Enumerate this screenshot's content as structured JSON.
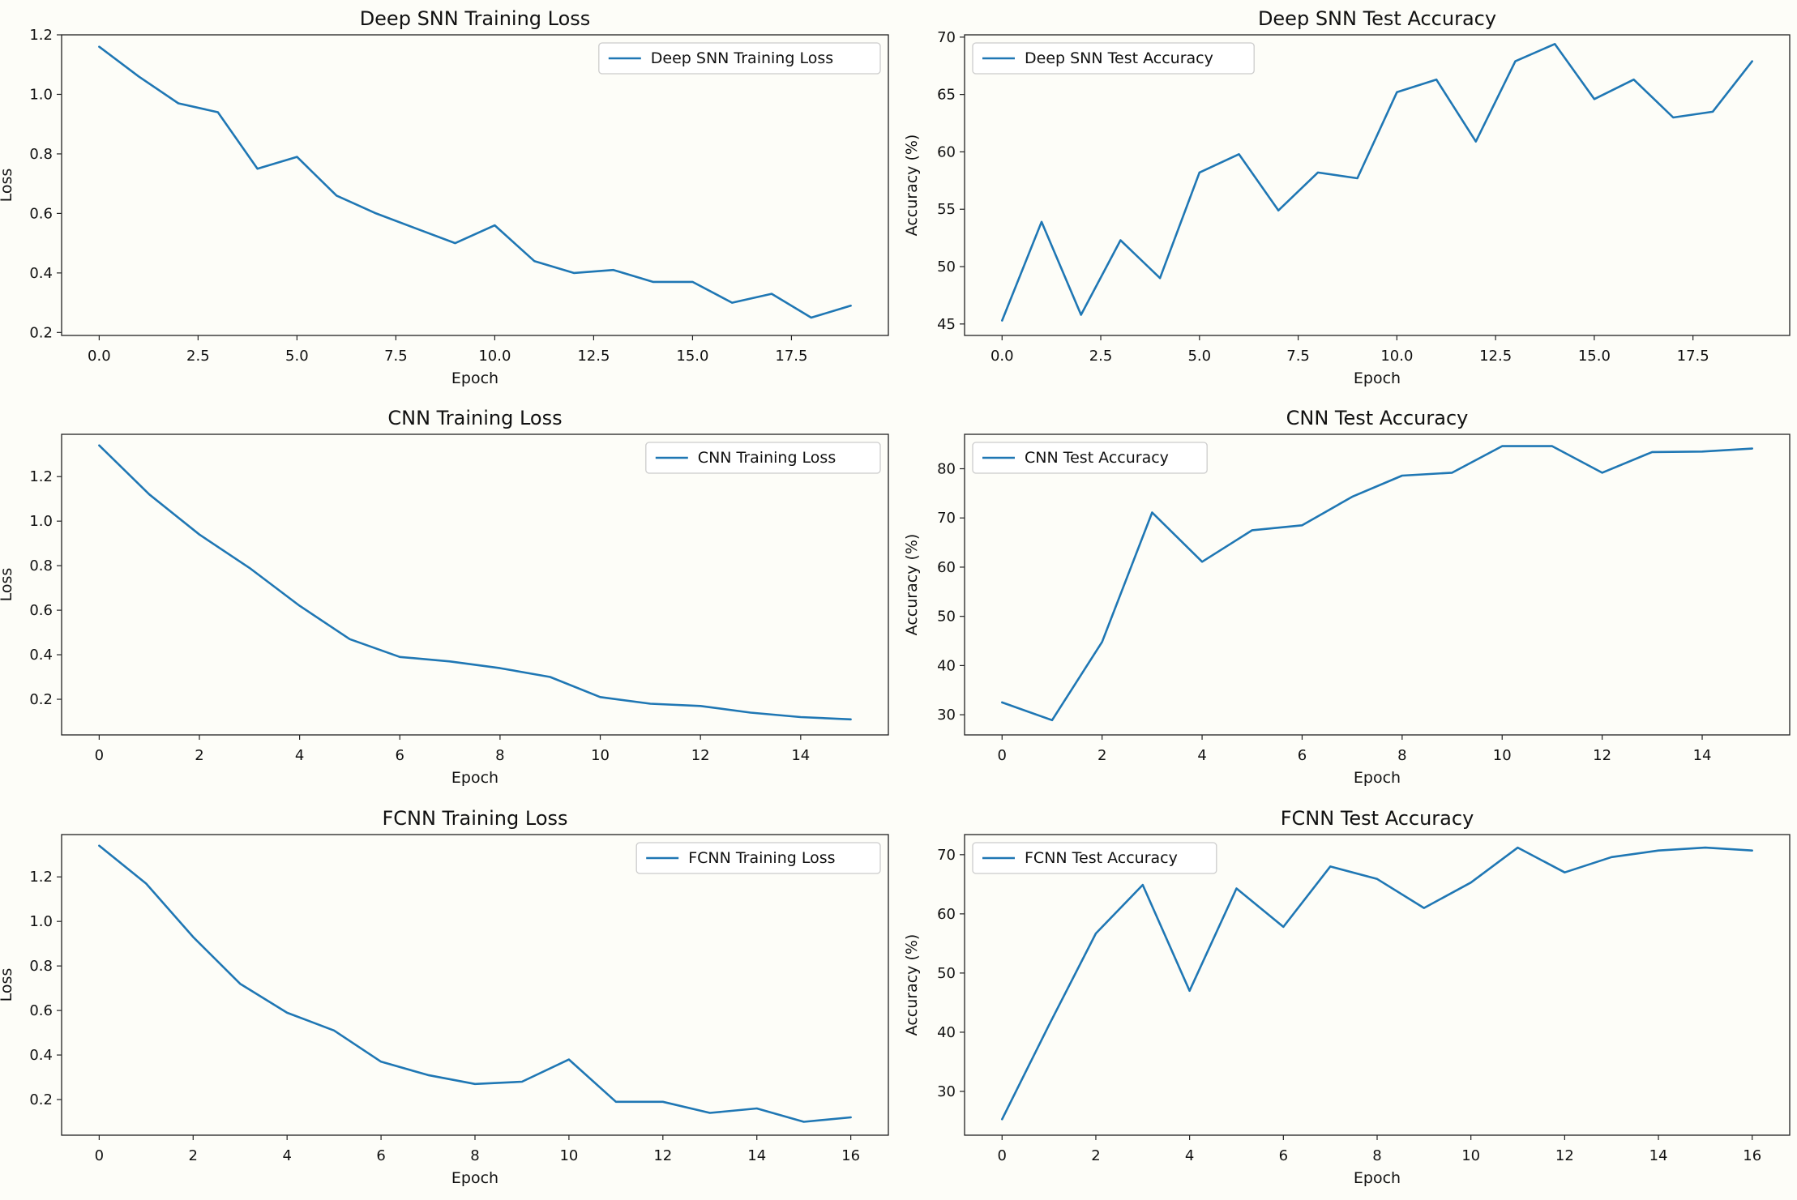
{
  "chart_data": [
    {
      "type": "line",
      "title": "Deep SNN Training Loss",
      "xlabel": "Epoch",
      "ylabel": "Loss",
      "legend": "Deep SNN Training Loss",
      "legend_loc": "top-right",
      "xlim": [
        -0.95,
        19.95
      ],
      "ylim": [
        0.19,
        1.2
      ],
      "x_ticks": [
        0,
        2.5,
        5,
        7.5,
        10,
        12.5,
        15,
        17.5
      ],
      "x_tick_labels": [
        "0.0",
        "2.5",
        "5.0",
        "7.5",
        "10.0",
        "12.5",
        "15.0",
        "17.5"
      ],
      "y_ticks": [
        0.2,
        0.4,
        0.6,
        0.8,
        1.0,
        1.2
      ],
      "y_tick_labels": [
        "0.2",
        "0.4",
        "0.6",
        "0.8",
        "1.0",
        "1.2"
      ],
      "x": [
        0,
        1,
        2,
        3,
        4,
        5,
        6,
        7,
        8,
        9,
        10,
        11,
        12,
        13,
        14,
        15,
        16,
        17,
        18,
        19
      ],
      "values": [
        1.16,
        1.06,
        0.97,
        0.94,
        0.75,
        0.79,
        0.66,
        0.6,
        0.55,
        0.5,
        0.56,
        0.44,
        0.4,
        0.41,
        0.37,
        0.37,
        0.3,
        0.33,
        0.25,
        0.29
      ],
      "grid": false
    },
    {
      "type": "line",
      "title": "Deep SNN Test Accuracy",
      "xlabel": "Epoch",
      "ylabel": "Accuracy (%)",
      "legend": "Deep SNN Test Accuracy",
      "legend_loc": "top-left",
      "xlim": [
        -0.95,
        19.95
      ],
      "ylim": [
        44.0,
        70.2
      ],
      "x_ticks": [
        0,
        2.5,
        5,
        7.5,
        10,
        12.5,
        15,
        17.5
      ],
      "x_tick_labels": [
        "0.0",
        "2.5",
        "5.0",
        "7.5",
        "10.0",
        "12.5",
        "15.0",
        "17.5"
      ],
      "y_ticks": [
        45,
        50,
        55,
        60,
        65,
        70
      ],
      "y_tick_labels": [
        "45",
        "50",
        "55",
        "60",
        "65",
        "70"
      ],
      "x": [
        0,
        1,
        2,
        3,
        4,
        5,
        6,
        7,
        8,
        9,
        10,
        11,
        12,
        13,
        14,
        15,
        16,
        17,
        18,
        19
      ],
      "values": [
        45.3,
        53.9,
        45.8,
        52.3,
        49.0,
        58.2,
        59.8,
        54.9,
        58.2,
        57.7,
        65.2,
        66.3,
        60.9,
        67.9,
        69.4,
        64.6,
        66.3,
        63.0,
        63.5,
        67.9
      ],
      "grid": false
    },
    {
      "type": "line",
      "title": "CNN Training Loss",
      "xlabel": "Epoch",
      "ylabel": "Loss",
      "legend": "CNN Training Loss",
      "legend_loc": "top-right",
      "xlim": [
        -0.75,
        15.75
      ],
      "ylim": [
        0.04,
        1.39
      ],
      "x_ticks": [
        0,
        2,
        4,
        6,
        8,
        10,
        12,
        14
      ],
      "x_tick_labels": [
        "0",
        "2",
        "4",
        "6",
        "8",
        "10",
        "12",
        "14"
      ],
      "y_ticks": [
        0.2,
        0.4,
        0.6,
        0.8,
        1.0,
        1.2
      ],
      "y_tick_labels": [
        "0.2",
        "0.4",
        "0.6",
        "0.8",
        "1.0",
        "1.2"
      ],
      "x": [
        0,
        1,
        2,
        3,
        4,
        5,
        6,
        7,
        8,
        9,
        10,
        11,
        12,
        13,
        14,
        15
      ],
      "values": [
        1.34,
        1.12,
        0.94,
        0.79,
        0.62,
        0.47,
        0.39,
        0.37,
        0.34,
        0.3,
        0.21,
        0.18,
        0.17,
        0.14,
        0.12,
        0.11
      ],
      "grid": false
    },
    {
      "type": "line",
      "title": "CNN Test Accuracy",
      "xlabel": "Epoch",
      "ylabel": "Accuracy (%)",
      "legend": "CNN Test Accuracy",
      "legend_loc": "top-left",
      "xlim": [
        -0.75,
        15.75
      ],
      "ylim": [
        25.9,
        87.0
      ],
      "x_ticks": [
        0,
        2,
        4,
        6,
        8,
        10,
        12,
        14
      ],
      "x_tick_labels": [
        "0",
        "2",
        "4",
        "6",
        "8",
        "10",
        "12",
        "14"
      ],
      "y_ticks": [
        30,
        40,
        50,
        60,
        70,
        80
      ],
      "y_tick_labels": [
        "30",
        "40",
        "50",
        "60",
        "70",
        "80"
      ],
      "x": [
        0,
        1,
        2,
        3,
        4,
        5,
        6,
        7,
        8,
        9,
        10,
        11,
        12,
        13,
        14,
        15
      ],
      "values": [
        32.5,
        28.9,
        44.8,
        71.1,
        61.1,
        67.5,
        68.5,
        74.3,
        78.6,
        79.2,
        84.6,
        84.6,
        79.2,
        83.4,
        83.5,
        84.1
      ],
      "grid": false
    },
    {
      "type": "line",
      "title": "FCNN Training Loss",
      "xlabel": "Epoch",
      "ylabel": "Loss",
      "legend": "FCNN Training Loss",
      "legend_loc": "top-right",
      "xlim": [
        -0.8,
        16.8
      ],
      "ylim": [
        0.04,
        1.39
      ],
      "x_ticks": [
        0,
        2,
        4,
        6,
        8,
        10,
        12,
        14,
        16
      ],
      "x_tick_labels": [
        "0",
        "2",
        "4",
        "6",
        "8",
        "10",
        "12",
        "14",
        "16"
      ],
      "y_ticks": [
        0.2,
        0.4,
        0.6,
        0.8,
        1.0,
        1.2
      ],
      "y_tick_labels": [
        "0.2",
        "0.4",
        "0.6",
        "0.8",
        "1.0",
        "1.2"
      ],
      "x": [
        0,
        1,
        2,
        3,
        4,
        5,
        6,
        7,
        8,
        9,
        10,
        11,
        12,
        13,
        14,
        15,
        16
      ],
      "values": [
        1.34,
        1.17,
        0.93,
        0.72,
        0.59,
        0.51,
        0.37,
        0.31,
        0.27,
        0.28,
        0.38,
        0.19,
        0.19,
        0.14,
        0.16,
        0.1,
        0.12
      ],
      "grid": false
    },
    {
      "type": "line",
      "title": "FCNN Test Accuracy",
      "xlabel": "Epoch",
      "ylabel": "Accuracy (%)",
      "legend": "FCNN Test Accuracy",
      "legend_loc": "top-left",
      "xlim": [
        -0.8,
        16.8
      ],
      "ylim": [
        22.6,
        73.4
      ],
      "x_ticks": [
        0,
        2,
        4,
        6,
        8,
        10,
        12,
        14,
        16
      ],
      "x_tick_labels": [
        "0",
        "2",
        "4",
        "6",
        "8",
        "10",
        "12",
        "14",
        "16"
      ],
      "y_ticks": [
        30,
        40,
        50,
        60,
        70
      ],
      "y_tick_labels": [
        "30",
        "40",
        "50",
        "60",
        "70"
      ],
      "x": [
        0,
        1,
        2,
        3,
        4,
        5,
        6,
        7,
        8,
        9,
        10,
        11,
        12,
        13,
        14,
        15,
        16
      ],
      "values": [
        25.3,
        41.2,
        56.7,
        64.9,
        47.0,
        64.3,
        57.8,
        68.0,
        65.9,
        61.0,
        65.3,
        71.2,
        67.0,
        69.6,
        70.7,
        71.2,
        70.7
      ],
      "grid": false
    }
  ]
}
